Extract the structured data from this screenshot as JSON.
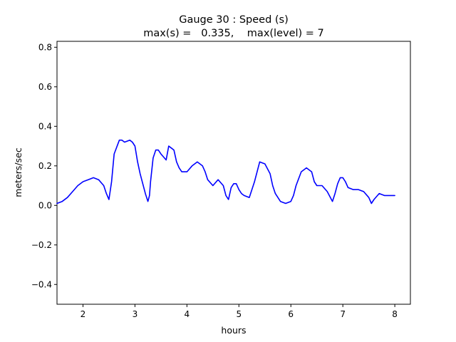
{
  "chart_data": {
    "type": "line",
    "title": "Gauge 30 : Speed (s)",
    "subtitle": "max(s) =   0.335,    max(level) = 7",
    "xlabel": "hours",
    "ylabel": "meters/sec",
    "xlim": [
      1.5,
      8.3
    ],
    "ylim": [
      -0.5,
      0.83
    ],
    "xticks": [
      2,
      3,
      4,
      5,
      6,
      7,
      8
    ],
    "yticks": [
      -0.4,
      -0.2,
      0.0,
      0.2,
      0.4,
      0.6,
      0.8
    ],
    "ytick_labels": [
      "−0.4",
      "−0.2",
      "0.0",
      "0.2",
      "0.4",
      "0.6",
      "0.8"
    ],
    "grid": false,
    "series": [
      {
        "color": "#0000ff",
        "x": [
          1.5,
          1.6,
          1.7,
          1.8,
          1.9,
          2.0,
          2.1,
          2.2,
          2.3,
          2.4,
          2.45,
          2.5,
          2.55,
          2.6,
          2.7,
          2.75,
          2.8,
          2.9,
          2.95,
          3.0,
          3.05,
          3.1,
          3.2,
          3.25,
          3.28,
          3.3,
          3.35,
          3.4,
          3.45,
          3.5,
          3.6,
          3.65,
          3.7,
          3.75,
          3.8,
          3.85,
          3.9,
          4.0,
          4.1,
          4.2,
          4.3,
          4.35,
          4.4,
          4.5,
          4.6,
          4.7,
          4.75,
          4.8,
          4.85,
          4.9,
          4.95,
          5.0,
          5.05,
          5.1,
          5.2,
          5.3,
          5.4,
          5.5,
          5.6,
          5.65,
          5.7,
          5.8,
          5.9,
          6.0,
          6.05,
          6.1,
          6.2,
          6.3,
          6.4,
          6.45,
          6.5,
          6.6,
          6.7,
          6.8,
          6.85,
          6.9,
          6.95,
          7.0,
          7.05,
          7.1,
          7.2,
          7.3,
          7.4,
          7.5,
          7.55,
          7.6,
          7.7,
          7.8,
          7.9,
          8.0
        ],
        "y": [
          0.01,
          0.02,
          0.04,
          0.07,
          0.1,
          0.12,
          0.13,
          0.14,
          0.13,
          0.1,
          0.06,
          0.03,
          0.12,
          0.26,
          0.33,
          0.33,
          0.32,
          0.33,
          0.32,
          0.3,
          0.22,
          0.16,
          0.06,
          0.02,
          0.05,
          0.12,
          0.24,
          0.28,
          0.28,
          0.26,
          0.23,
          0.3,
          0.29,
          0.28,
          0.22,
          0.19,
          0.17,
          0.17,
          0.2,
          0.22,
          0.2,
          0.17,
          0.13,
          0.1,
          0.13,
          0.1,
          0.05,
          0.03,
          0.09,
          0.11,
          0.11,
          0.08,
          0.06,
          0.05,
          0.04,
          0.12,
          0.22,
          0.21,
          0.16,
          0.1,
          0.06,
          0.02,
          0.01,
          0.02,
          0.05,
          0.1,
          0.17,
          0.19,
          0.17,
          0.12,
          0.1,
          0.1,
          0.07,
          0.02,
          0.06,
          0.11,
          0.14,
          0.14,
          0.12,
          0.09,
          0.08,
          0.08,
          0.07,
          0.04,
          0.01,
          0.03,
          0.06,
          0.05,
          0.05,
          0.05
        ]
      }
    ]
  }
}
